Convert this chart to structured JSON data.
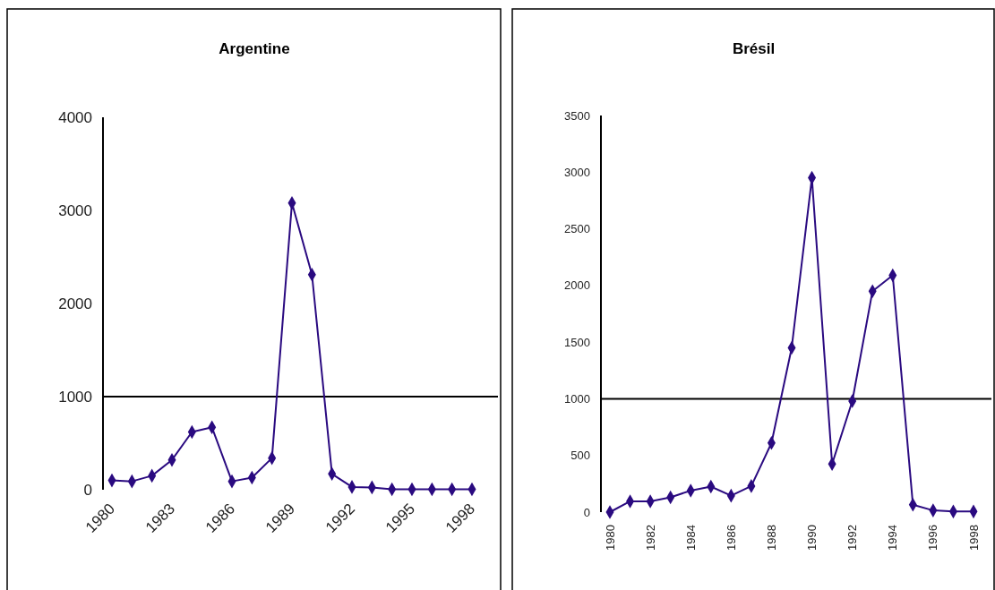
{
  "chart_data": [
    {
      "type": "line",
      "title": "Argentine",
      "x": [
        1980,
        1981,
        1982,
        1983,
        1984,
        1985,
        1986,
        1987,
        1988,
        1989,
        1990,
        1991,
        1992,
        1993,
        1994,
        1995,
        1996,
        1997,
        1998
      ],
      "series": [
        {
          "color": "#2a0a80",
          "values": [
            100,
            90,
            150,
            320,
            620,
            670,
            90,
            130,
            340,
            3080,
            2310,
            170,
            30,
            25,
            5,
            5,
            5,
            5,
            5
          ]
        }
      ],
      "xlim": [
        1980,
        1998
      ],
      "xticks": [
        1980,
        1983,
        1986,
        1989,
        1992,
        1995,
        1998
      ],
      "ylim": [
        0,
        4000
      ],
      "yticks": [
        0,
        1000,
        2000,
        3000,
        4000
      ],
      "ref_lines": [
        {
          "axis": "y",
          "value": 1000,
          "color": "#000000"
        }
      ],
      "marker": "diamond",
      "line_style": "solid"
    },
    {
      "type": "line",
      "title": "Brésil",
      "x": [
        1980,
        1981,
        1982,
        1983,
        1984,
        1985,
        1986,
        1987,
        1988,
        1989,
        1990,
        1991,
        1992,
        1993,
        1994,
        1995,
        1996,
        1997,
        1998
      ],
      "series": [
        {
          "color": "#2a0a80",
          "values": [
            0,
            95,
            95,
            130,
            190,
            225,
            145,
            230,
            610,
            1450,
            2950,
            425,
            980,
            1950,
            2090,
            65,
            15,
            5,
            5
          ]
        }
      ],
      "xlim": [
        1980,
        1998
      ],
      "xticks": [
        1980,
        1982,
        1984,
        1986,
        1988,
        1990,
        1992,
        1994,
        1996,
        1998
      ],
      "ylim": [
        0,
        3500
      ],
      "yticks": [
        0,
        500,
        1000,
        1500,
        2000,
        2500,
        3000,
        3500
      ],
      "ref_lines": [
        {
          "axis": "y",
          "value": 1000,
          "color": "#000000"
        }
      ],
      "marker": "diamond",
      "line_style": "solid"
    }
  ]
}
